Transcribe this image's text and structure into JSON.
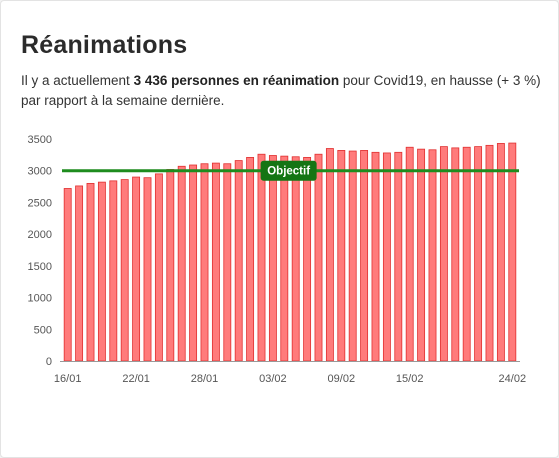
{
  "card": {
    "title": "Réanimations",
    "desc_before": "Il y a actuellement ",
    "desc_bold": "3 436 personnes en réanimation",
    "desc_after": " pour Covid19, en hausse (+ 3 %) par rapport à la semaine dernière."
  },
  "colors": {
    "bar_fill": "#ff7b7b",
    "bar_stroke": "#e03030",
    "objective_line": "#1e8c1e",
    "objective_badge": "#147514"
  },
  "chart_data": {
    "type": "bar",
    "categories": [
      "16/01",
      "17/01",
      "18/01",
      "19/01",
      "20/01",
      "21/01",
      "22/01",
      "23/01",
      "24/01",
      "25/01",
      "26/01",
      "27/01",
      "28/01",
      "29/01",
      "30/01",
      "31/01",
      "01/02",
      "02/02",
      "03/02",
      "04/02",
      "05/02",
      "06/02",
      "07/02",
      "08/02",
      "09/02",
      "10/02",
      "11/02",
      "12/02",
      "13/02",
      "14/02",
      "15/02",
      "16/02",
      "17/02",
      "18/02",
      "19/02",
      "20/02",
      "21/02",
      "22/02",
      "23/02",
      "24/02"
    ],
    "values": [
      2720,
      2760,
      2800,
      2820,
      2840,
      2860,
      2900,
      2890,
      2950,
      3020,
      3070,
      3090,
      3110,
      3120,
      3110,
      3160,
      3210,
      3260,
      3240,
      3230,
      3220,
      3210,
      3260,
      3350,
      3320,
      3310,
      3320,
      3290,
      3280,
      3290,
      3370,
      3340,
      3330,
      3380,
      3360,
      3370,
      3380,
      3400,
      3430,
      3436
    ],
    "x_tick_labels": [
      "16/01",
      "22/01",
      "28/01",
      "03/02",
      "09/02",
      "15/02",
      "24/02"
    ],
    "y_ticks": [
      0,
      500,
      1000,
      1500,
      2000,
      2500,
      3000,
      3500
    ],
    "ylim": [
      0,
      3500
    ],
    "objective": {
      "value": 3000,
      "label": "Objectif"
    },
    "grid": false
  }
}
